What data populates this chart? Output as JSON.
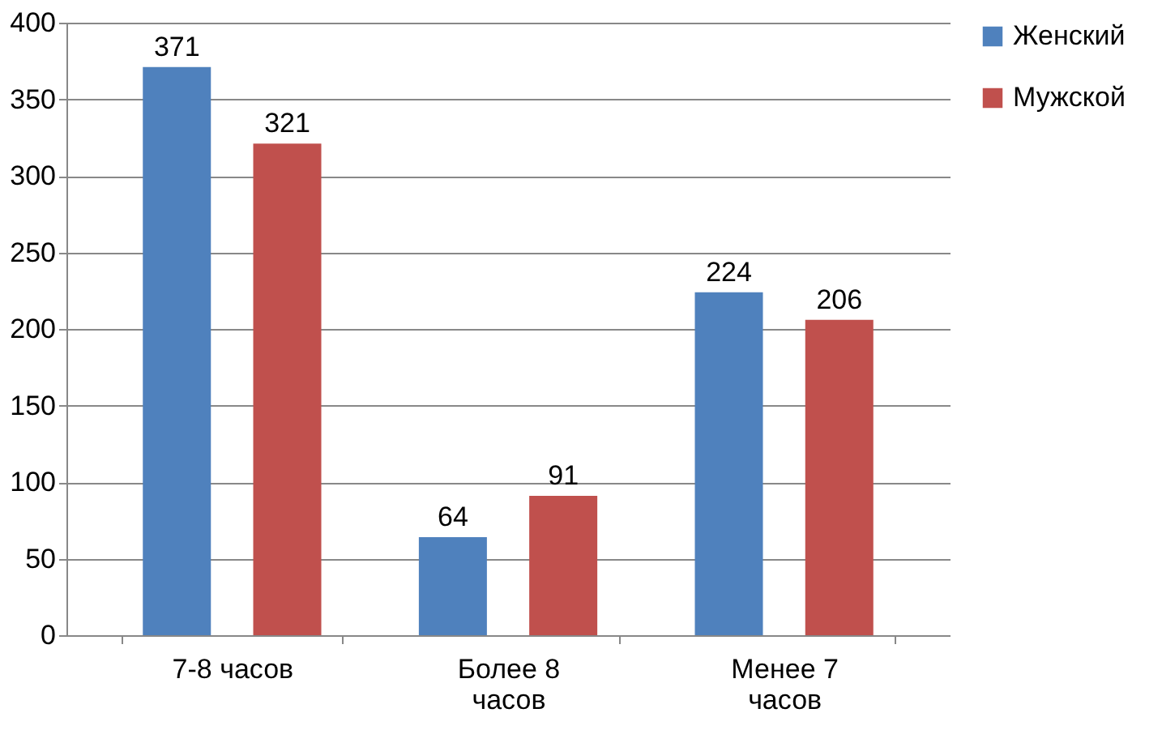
{
  "chart_data": {
    "type": "bar",
    "categories": [
      "7-8 часов",
      "Более 8 часов",
      "Менее 7 часов"
    ],
    "series": [
      {
        "name": "Женский",
        "color": "#4f81bd",
        "values": [
          371,
          64,
          224
        ]
      },
      {
        "name": "Мужской",
        "color": "#c0504d",
        "values": [
          321,
          91,
          206
        ]
      }
    ],
    "ylim": [
      0,
      400
    ],
    "yticks": [
      0,
      50,
      100,
      150,
      200,
      250,
      300,
      350,
      400
    ],
    "grid": "y",
    "legend": "right",
    "data_labels": true
  }
}
